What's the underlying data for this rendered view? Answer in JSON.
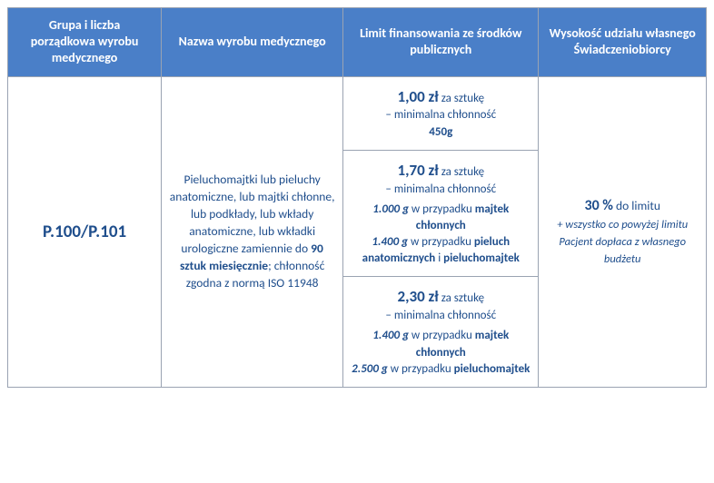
{
  "headers": {
    "col1": "Grupa i liczba porządkowa wyrobu medycznego",
    "col2": "Nazwa wyrobu medycznego",
    "col3": "Limit finansowania ze środków publicznych",
    "col4": "Wysokość udziału własnego Świadczeniobiorcy"
  },
  "row": {
    "code": "P.100/P.101",
    "description": {
      "pre": "Pieluchomajtki lub pieluchy anatomiczne, lub majtki chłonne, lub podkłady, lub wkłady anatomiczne, lub wkładki urologiczne zamiennie do ",
      "bold1": "90 sztuk miesięcznie",
      "mid": "; chłonność zgodna z normą ISO 11948"
    },
    "limits": [
      {
        "price": "1,00 zł",
        "per": " za sztukę",
        "line2": "– minimalna chłonność",
        "extra_bold": "450g"
      },
      {
        "price": "1,70 zł",
        "per": " za sztukę",
        "line2": "– minimalna chłonność",
        "specs": [
          {
            "amount": "1.000 g",
            "text": " w przypadku ",
            "target": "majtek chłonnych"
          },
          {
            "amount": "1.400 g",
            "text": " w przypadku ",
            "target": "pieluch anatomicznych",
            "joiner": " i ",
            "target2": "pieluchomajtek"
          }
        ]
      },
      {
        "price": "2,30 zł",
        "per": " za sztukę",
        "line2": "– minimalna chłonność",
        "specs": [
          {
            "amount": "1.400 g",
            "text": " w przypadku ",
            "target": "majtek chłonnych"
          },
          {
            "amount": "2.500 g",
            "text": " w przypadku ",
            "target": "pieluchomajtek"
          }
        ]
      }
    ],
    "contribution": {
      "pct": "30 %",
      "pct_suffix": " do limitu",
      "note": "+ wszystko co powyżej limitu Pacjent dopłaca z własnego budżetu"
    }
  },
  "colors": {
    "header_bg": "#4a7fc8",
    "header_fg": "#ffffff",
    "text": "#1f4e8c",
    "border": "#9aa3b2"
  }
}
